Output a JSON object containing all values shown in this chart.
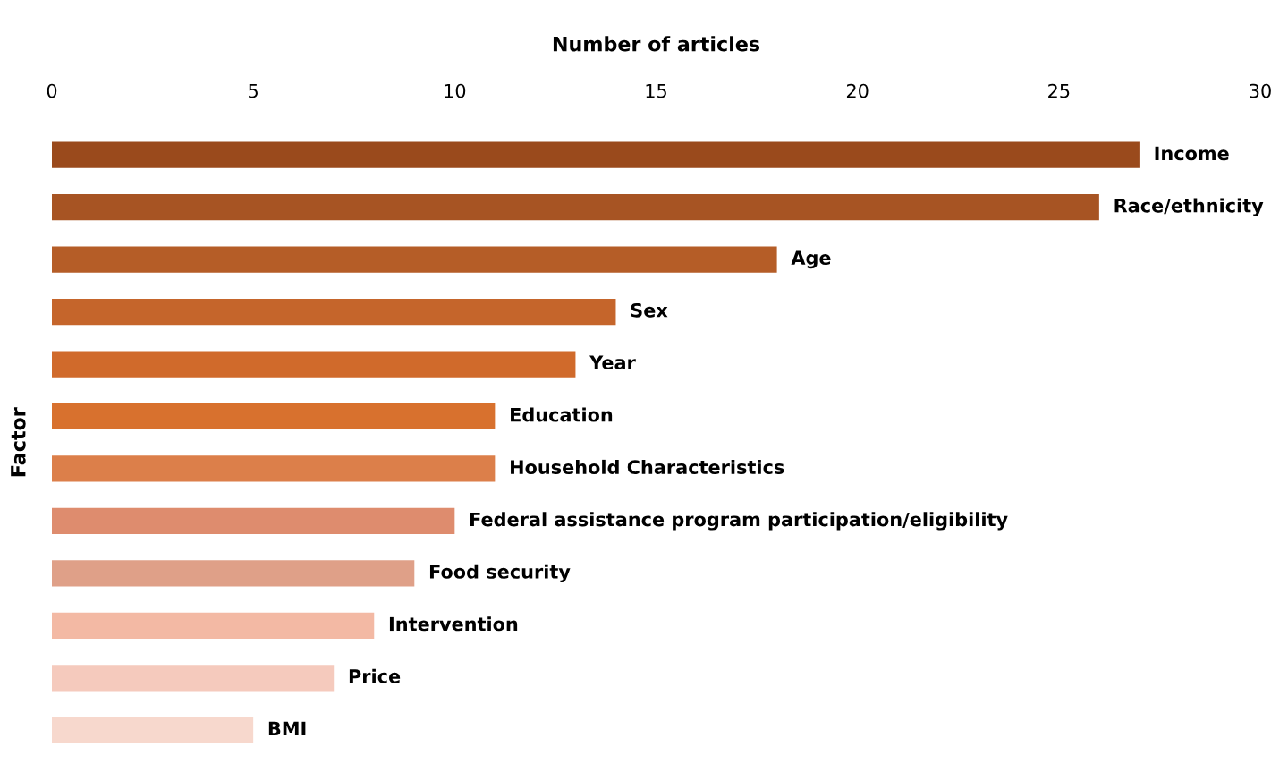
{
  "chart_data": {
    "type": "bar",
    "orientation": "horizontal",
    "xlabel": "Number of articles",
    "ylabel": "Factor",
    "categories": [
      "Income",
      "Race/ethnicity",
      "Age",
      "Sex",
      "Year",
      "Education",
      "Household Characteristics",
      "Federal assistance program participation/eligibility",
      "Food security",
      "Intervention",
      "Price",
      "BMI"
    ],
    "values": [
      27,
      26,
      18,
      14,
      13,
      11,
      11,
      10,
      9,
      8,
      7,
      5
    ],
    "colors": [
      "#9a4a1c",
      "#a75423",
      "#b55d27",
      "#c5652b",
      "#d06a2b",
      "#d8712e",
      "#dc7f4a",
      "#de8c6e",
      "#dfa088",
      "#f3b9a4",
      "#f5cabd",
      "#f7d8cd"
    ],
    "xlim": [
      0,
      30
    ],
    "xticks": [
      0,
      5,
      10,
      15,
      20,
      25,
      30
    ],
    "tick_labels": "x",
    "grid": false
  }
}
